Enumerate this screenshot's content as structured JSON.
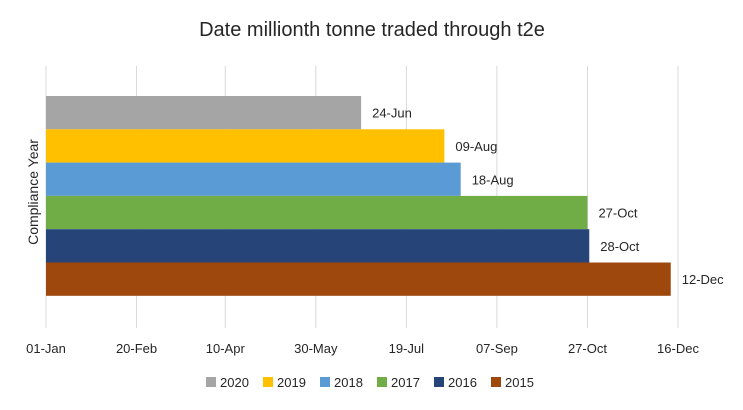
{
  "chart_data": {
    "type": "bar",
    "orientation": "horizontal",
    "title": "Date millionth tonne traded through t2e",
    "xlabel": "",
    "ylabel": "Compliance Year",
    "x_axis": {
      "scale": "date",
      "min": "01-Jan",
      "max": "16-Dec",
      "ticks": [
        "01-Jan",
        "20-Feb",
        "10-Apr",
        "30-May",
        "19-Jul",
        "07-Sep",
        "27-Oct",
        "16-Dec"
      ]
    },
    "grid": true,
    "legend_position": "bottom",
    "series": [
      {
        "name": "2020",
        "value": "24-Jun",
        "label": "24-Jun",
        "color": "#a5a5a5"
      },
      {
        "name": "2019",
        "value": "09-Aug",
        "label": "09-Aug",
        "color": "#ffc000"
      },
      {
        "name": "2018",
        "value": "18-Aug",
        "label": "18-Aug",
        "color": "#5b9bd5"
      },
      {
        "name": "2017",
        "value": "27-Oct",
        "label": "27-Oct",
        "color": "#70ad47"
      },
      {
        "name": "2016",
        "value": "28-Oct",
        "label": "28-Oct",
        "color": "#264478"
      },
      {
        "name": "2015",
        "value": "12-Dec",
        "label": "12-Dec",
        "color": "#9e480e"
      }
    ]
  }
}
